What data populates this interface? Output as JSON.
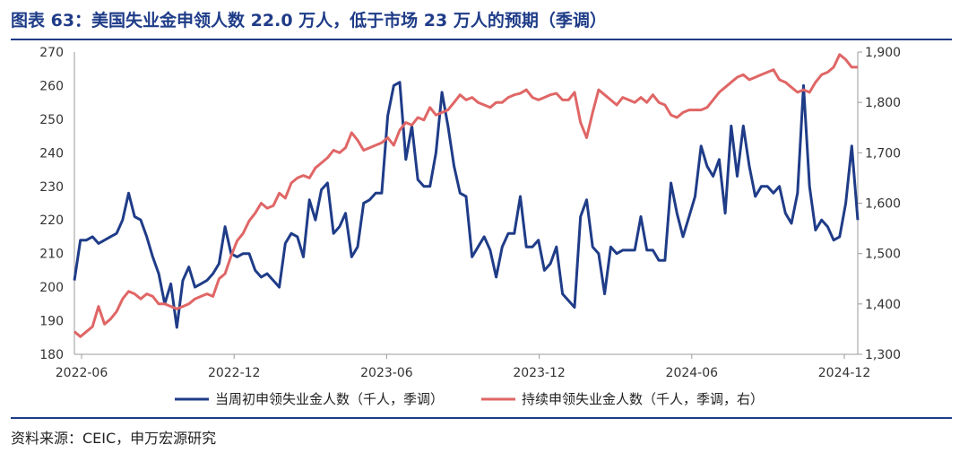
{
  "title": "图表 63：美国失业金申领人数 22.0 万人，低于市场 23 万人的预期（季调）",
  "source": "资料来源：CEIC，申万宏源研究",
  "colors": {
    "accent": "#1f3c88",
    "series1": "#1f3c88",
    "series2": "#e06666"
  },
  "chart_data": {
    "type": "line",
    "x_ticks": [
      "2022-06",
      "2022-12",
      "2023-06",
      "2023-12",
      "2024-06",
      "2024-12"
    ],
    "x_range": [
      "2022-06",
      "2024-12"
    ],
    "y_left": {
      "range": [
        180,
        270
      ],
      "ticks": [
        "180",
        "190",
        "200",
        "210",
        "220",
        "230",
        "240",
        "250",
        "260",
        "270"
      ]
    },
    "y_right": {
      "range": [
        1300,
        1900
      ],
      "ticks": [
        "1,300",
        "1,400",
        "1,500",
        "1,600",
        "1,700",
        "1,800",
        "1,900"
      ]
    },
    "grid": false,
    "legend_position": "bottom",
    "series": [
      {
        "name": "当周初申领失业金人数（千人，季调）",
        "axis": "left",
        "color": "#1f3c88",
        "values": [
          202,
          214,
          214,
          215,
          213,
          214,
          215,
          216,
          220,
          228,
          221,
          220,
          215,
          209,
          204,
          195,
          201,
          188,
          202,
          206,
          200,
          201,
          202,
          204,
          207,
          218,
          210,
          209,
          210,
          210,
          205,
          203,
          204,
          202,
          200,
          213,
          216,
          215,
          209,
          226,
          220,
          229,
          231,
          216,
          218,
          222,
          209,
          212,
          225,
          226,
          228,
          228,
          251,
          260,
          261,
          238,
          248,
          232,
          230,
          230,
          240,
          258,
          248,
          236,
          228,
          227,
          209,
          212,
          215,
          211,
          203,
          212,
          216,
          216,
          227,
          212,
          212,
          214,
          205,
          207,
          212,
          198,
          196,
          194,
          221,
          226,
          212,
          210,
          198,
          212,
          210,
          211,
          211,
          211,
          221,
          211,
          211,
          208,
          208,
          231,
          222,
          215,
          221,
          227,
          242,
          236,
          233,
          238,
          222,
          248,
          233,
          248,
          236,
          227,
          230,
          230,
          228,
          230,
          222,
          219,
          228,
          260,
          230,
          217,
          220,
          218,
          214,
          215,
          225,
          242,
          220
        ]
      },
      {
        "name": "持续申领失业金人数（千人，季调，右）",
        "axis": "right",
        "color": "#e06666",
        "values": [
          1345,
          1335,
          1345,
          1355,
          1395,
          1360,
          1370,
          1385,
          1410,
          1425,
          1420,
          1410,
          1420,
          1415,
          1400,
          1400,
          1395,
          1390,
          1395,
          1400,
          1410,
          1415,
          1420,
          1415,
          1450,
          1460,
          1495,
          1525,
          1540,
          1565,
          1580,
          1600,
          1590,
          1595,
          1620,
          1610,
          1640,
          1650,
          1655,
          1650,
          1670,
          1680,
          1690,
          1705,
          1700,
          1710,
          1740,
          1725,
          1705,
          1710,
          1715,
          1720,
          1730,
          1715,
          1745,
          1760,
          1755,
          1770,
          1765,
          1790,
          1775,
          1780,
          1785,
          1800,
          1815,
          1805,
          1810,
          1800,
          1795,
          1790,
          1800,
          1800,
          1810,
          1815,
          1818,
          1825,
          1810,
          1805,
          1810,
          1815,
          1818,
          1805,
          1805,
          1820,
          1760,
          1730,
          1780,
          1825,
          1815,
          1805,
          1795,
          1810,
          1805,
          1800,
          1810,
          1800,
          1815,
          1800,
          1795,
          1775,
          1770,
          1780,
          1785,
          1785,
          1785,
          1790,
          1805,
          1820,
          1830,
          1840,
          1850,
          1855,
          1845,
          1850,
          1855,
          1860,
          1865,
          1845,
          1840,
          1830,
          1820,
          1825,
          1820,
          1840,
          1855,
          1860,
          1870,
          1895,
          1885,
          1870,
          1870
        ]
      }
    ]
  }
}
